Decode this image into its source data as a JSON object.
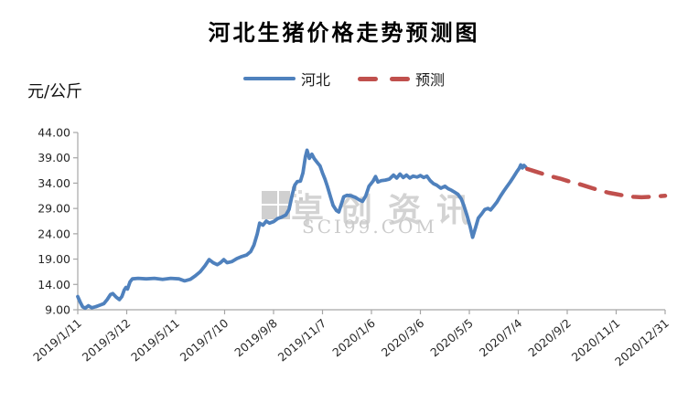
{
  "chart_data": {
    "type": "line",
    "title": "河北生猪价格走势预测图",
    "unit_label": "元/公斤",
    "ylabel": "元/公斤",
    "y_min": 9,
    "y_max": 44,
    "y_ticks": [
      "44.00",
      "39.00",
      "34.00",
      "29.00",
      "24.00",
      "19.00",
      "14.00",
      "9.00"
    ],
    "x_ticks": [
      "2019/1/11",
      "2019/3/12",
      "2019/5/11",
      "2019/7/10",
      "2019/9/8",
      "2019/11/7",
      "2020/1/6",
      "2020/3/6",
      "2020/5/5",
      "2020/7/4",
      "2020/9/2",
      "2020/11/1",
      "2020/12/31"
    ],
    "grid": "off",
    "legend_position": "top-center",
    "axis_color": "#a6a6a6",
    "tick_label_color": "#262626",
    "watermark": {
      "text": "卓创资讯",
      "subtext": "SCI99.COM"
    },
    "series": [
      {
        "name": "河北",
        "color": "#4F81BD",
        "style": "solid",
        "points": [
          [
            "2019/1/11",
            11.6
          ],
          [
            "2019/1/14",
            10.5
          ],
          [
            "2019/1/17",
            9.6
          ],
          [
            "2019/1/20",
            9.3
          ],
          [
            "2019/1/24",
            9.8
          ],
          [
            "2019/1/28",
            9.4
          ],
          [
            "2019/2/2",
            9.6
          ],
          [
            "2019/2/7",
            9.9
          ],
          [
            "2019/2/12",
            10.2
          ],
          [
            "2019/2/16",
            11.0
          ],
          [
            "2019/2/20",
            12.0
          ],
          [
            "2019/2/23",
            12.2
          ],
          [
            "2019/2/27",
            11.5
          ],
          [
            "2019/3/3",
            11.0
          ],
          [
            "2019/3/6",
            11.6
          ],
          [
            "2019/3/9",
            12.9
          ],
          [
            "2019/3/11",
            13.4
          ],
          [
            "2019/3/13",
            13.1
          ],
          [
            "2019/3/16",
            14.5
          ],
          [
            "2019/3/19",
            15.1
          ],
          [
            "2019/3/26",
            15.2
          ],
          [
            "2019/4/5",
            15.1
          ],
          [
            "2019/4/15",
            15.2
          ],
          [
            "2019/4/25",
            15.0
          ],
          [
            "2019/5/5",
            15.2
          ],
          [
            "2019/5/15",
            15.1
          ],
          [
            "2019/5/22",
            14.7
          ],
          [
            "2019/5/29",
            15.0
          ],
          [
            "2019/6/4",
            15.7
          ],
          [
            "2019/6/10",
            16.5
          ],
          [
            "2019/6/16",
            17.7
          ],
          [
            "2019/6/21",
            18.9
          ],
          [
            "2019/6/26",
            18.3
          ],
          [
            "2019/7/1",
            17.9
          ],
          [
            "2019/7/5",
            18.3
          ],
          [
            "2019/7/9",
            18.9
          ],
          [
            "2019/7/13",
            18.3
          ],
          [
            "2019/7/19",
            18.5
          ],
          [
            "2019/7/25",
            19.1
          ],
          [
            "2019/7/31",
            19.5
          ],
          [
            "2019/8/6",
            19.8
          ],
          [
            "2019/8/11",
            20.5
          ],
          [
            "2019/8/15",
            21.8
          ],
          [
            "2019/8/19",
            24.0
          ],
          [
            "2019/8/22",
            26.1
          ],
          [
            "2019/8/26",
            25.7
          ],
          [
            "2019/8/30",
            26.5
          ],
          [
            "2019/9/3",
            26.1
          ],
          [
            "2019/9/8",
            26.4
          ],
          [
            "2019/9/13",
            27.0
          ],
          [
            "2019/9/18",
            27.3
          ],
          [
            "2019/9/23",
            27.7
          ],
          [
            "2019/9/27",
            28.8
          ],
          [
            "2019/10/1",
            31.8
          ],
          [
            "2019/10/4",
            33.6
          ],
          [
            "2019/10/7",
            34.3
          ],
          [
            "2019/10/11",
            34.4
          ],
          [
            "2019/10/14",
            36.0
          ],
          [
            "2019/10/17",
            39.2
          ],
          [
            "2019/10/19",
            40.5
          ],
          [
            "2019/10/22",
            38.9
          ],
          [
            "2019/10/25",
            39.7
          ],
          [
            "2019/10/28",
            38.8
          ],
          [
            "2019/11/1",
            38.0
          ],
          [
            "2019/11/4",
            37.4
          ],
          [
            "2019/11/7",
            36.0
          ],
          [
            "2019/11/10",
            34.8
          ],
          [
            "2019/11/13",
            33.4
          ],
          [
            "2019/11/17",
            31.2
          ],
          [
            "2019/11/20",
            29.6
          ],
          [
            "2019/11/24",
            28.6
          ],
          [
            "2019/11/27",
            28.3
          ],
          [
            "2019/11/30",
            29.8
          ],
          [
            "2019/12/3",
            31.3
          ],
          [
            "2019/12/7",
            31.6
          ],
          [
            "2019/12/12",
            31.5
          ],
          [
            "2019/12/17",
            31.2
          ],
          [
            "2019/12/22",
            30.7
          ],
          [
            "2019/12/26",
            30.4
          ],
          [
            "2019/12/30",
            31.5
          ],
          [
            "2020/1/3",
            33.4
          ],
          [
            "2020/1/8",
            34.4
          ],
          [
            "2020/1/11",
            35.3
          ],
          [
            "2020/1/14",
            34.2
          ],
          [
            "2020/1/18",
            34.5
          ],
          [
            "2020/1/23",
            34.6
          ],
          [
            "2020/1/28",
            34.8
          ],
          [
            "2020/2/2",
            35.6
          ],
          [
            "2020/2/6",
            35.0
          ],
          [
            "2020/2/10",
            35.8
          ],
          [
            "2020/2/14",
            35.1
          ],
          [
            "2020/2/18",
            35.6
          ],
          [
            "2020/2/22",
            35.0
          ],
          [
            "2020/2/26",
            35.4
          ],
          [
            "2020/3/2",
            35.2
          ],
          [
            "2020/3/6",
            35.5
          ],
          [
            "2020/3/10",
            35.1
          ],
          [
            "2020/3/14",
            35.4
          ],
          [
            "2020/3/18",
            34.5
          ],
          [
            "2020/3/22",
            33.9
          ],
          [
            "2020/3/26",
            33.6
          ],
          [
            "2020/3/31",
            33.0
          ],
          [
            "2020/4/5",
            33.4
          ],
          [
            "2020/4/9",
            32.9
          ],
          [
            "2020/4/13",
            32.6
          ],
          [
            "2020/4/17",
            32.2
          ],
          [
            "2020/4/21",
            31.8
          ],
          [
            "2020/4/25",
            30.9
          ],
          [
            "2020/4/28",
            29.7
          ],
          [
            "2020/5/2",
            27.7
          ],
          [
            "2020/5/6",
            25.4
          ],
          [
            "2020/5/9",
            23.3
          ],
          [
            "2020/5/13",
            25.4
          ],
          [
            "2020/5/16",
            27.1
          ],
          [
            "2020/5/20",
            27.9
          ],
          [
            "2020/5/24",
            28.8
          ],
          [
            "2020/5/28",
            29.0
          ],
          [
            "2020/5/31",
            28.7
          ],
          [
            "2020/6/4",
            29.5
          ],
          [
            "2020/6/8",
            30.3
          ],
          [
            "2020/6/12",
            31.4
          ],
          [
            "2020/6/16",
            32.4
          ],
          [
            "2020/6/20",
            33.3
          ],
          [
            "2020/6/24",
            34.2
          ],
          [
            "2020/6/28",
            35.2
          ],
          [
            "2020/7/2",
            36.2
          ],
          [
            "2020/7/5",
            36.9
          ],
          [
            "2020/7/7",
            37.6
          ],
          [
            "2020/7/9",
            37.0
          ],
          [
            "2020/7/11",
            37.5
          ],
          [
            "2020/7/13",
            37.2
          ]
        ]
      },
      {
        "name": "预测",
        "color": "#C0504D",
        "style": "dashed",
        "points": [
          [
            "2020/7/15",
            36.8
          ],
          [
            "2020/7/25",
            36.3
          ],
          [
            "2020/8/4",
            35.8
          ],
          [
            "2020/8/14",
            35.3
          ],
          [
            "2020/8/24",
            34.9
          ],
          [
            "2020/9/3",
            34.4
          ],
          [
            "2020/9/13",
            34.0
          ],
          [
            "2020/9/23",
            33.5
          ],
          [
            "2020/10/3",
            33.0
          ],
          [
            "2020/10/13",
            32.5
          ],
          [
            "2020/10/23",
            32.1
          ],
          [
            "2020/11/2",
            31.8
          ],
          [
            "2020/11/12",
            31.5
          ],
          [
            "2020/11/22",
            31.3
          ],
          [
            "2020/12/2",
            31.2
          ],
          [
            "2020/12/12",
            31.3
          ],
          [
            "2020/12/22",
            31.4
          ],
          [
            "2020/12/31",
            31.5
          ]
        ]
      }
    ]
  }
}
